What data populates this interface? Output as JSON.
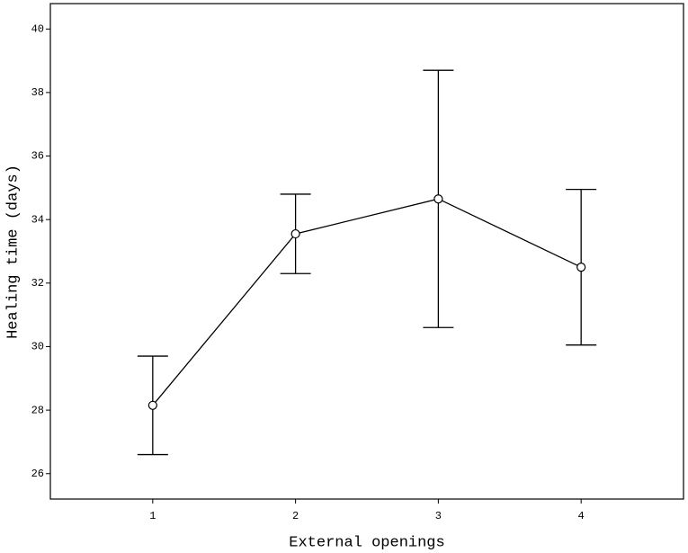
{
  "chart_data": {
    "type": "line",
    "x_label": "External openings",
    "y_label": "Healing time (days)",
    "categories": [
      "1",
      "2",
      "3",
      "4"
    ],
    "values": [
      28.15,
      33.55,
      34.65,
      32.5
    ],
    "errors": [
      1.55,
      1.25,
      4.05,
      2.45
    ],
    "color": "#000000",
    "ylim": [
      25.2,
      40.8
    ],
    "yticks": [
      26,
      28,
      30,
      32,
      34,
      36,
      38,
      40
    ]
  }
}
